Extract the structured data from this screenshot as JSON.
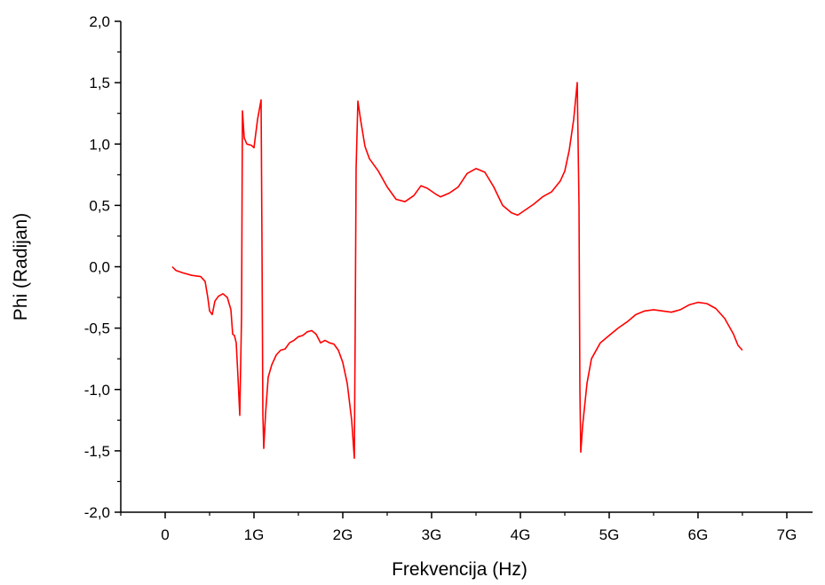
{
  "chart_data": {
    "type": "line",
    "title": "",
    "xlabel": "Frekvencija (Hz)",
    "ylabel": "Phi (Radijan)",
    "xlim": [
      -0.5,
      7.4
    ],
    "ylim": [
      -2.0,
      2.0
    ],
    "grid": false,
    "legend": "none",
    "x_ticks": [
      0,
      1,
      2,
      3,
      4,
      5,
      6,
      7
    ],
    "x_tick_labels": [
      "0",
      "1G",
      "2G",
      "3G",
      "4G",
      "5G",
      "6G",
      "7G"
    ],
    "y_ticks": [
      -2.0,
      -1.5,
      -1.0,
      -0.5,
      0.0,
      0.5,
      1.0,
      1.5,
      2.0
    ],
    "y_tick_labels": [
      "-2,0",
      "-1,5",
      "-1,0",
      "-0,5",
      "0,0",
      "0,5",
      "1,0",
      "1,5",
      "2,0"
    ],
    "series": [
      {
        "color": "#ff0000",
        "points": [
          [
            0.08,
            0.0
          ],
          [
            0.12,
            -0.03
          ],
          [
            0.2,
            -0.05
          ],
          [
            0.3,
            -0.07
          ],
          [
            0.4,
            -0.08
          ],
          [
            0.45,
            -0.12
          ],
          [
            0.48,
            -0.25
          ],
          [
            0.5,
            -0.36
          ],
          [
            0.53,
            -0.39
          ],
          [
            0.56,
            -0.28
          ],
          [
            0.6,
            -0.24
          ],
          [
            0.65,
            -0.22
          ],
          [
            0.7,
            -0.25
          ],
          [
            0.74,
            -0.35
          ],
          [
            0.76,
            -0.55
          ],
          [
            0.78,
            -0.56
          ],
          [
            0.8,
            -0.62
          ],
          [
            0.82,
            -0.9
          ],
          [
            0.84,
            -1.21
          ],
          [
            0.86,
            -0.4
          ],
          [
            0.87,
            1.27
          ],
          [
            0.89,
            1.05
          ],
          [
            0.92,
            1.0
          ],
          [
            0.97,
            0.99
          ],
          [
            1.0,
            0.97
          ],
          [
            1.04,
            1.2
          ],
          [
            1.08,
            1.36
          ],
          [
            1.09,
            0.2
          ],
          [
            1.1,
            -1.2
          ],
          [
            1.11,
            -1.48
          ],
          [
            1.13,
            -1.2
          ],
          [
            1.16,
            -0.9
          ],
          [
            1.2,
            -0.8
          ],
          [
            1.25,
            -0.72
          ],
          [
            1.3,
            -0.68
          ],
          [
            1.35,
            -0.67
          ],
          [
            1.4,
            -0.62
          ],
          [
            1.45,
            -0.6
          ],
          [
            1.5,
            -0.57
          ],
          [
            1.55,
            -0.56
          ],
          [
            1.6,
            -0.53
          ],
          [
            1.65,
            -0.52
          ],
          [
            1.7,
            -0.55
          ],
          [
            1.75,
            -0.62
          ],
          [
            1.8,
            -0.6
          ],
          [
            1.85,
            -0.62
          ],
          [
            1.9,
            -0.63
          ],
          [
            1.95,
            -0.68
          ],
          [
            2.0,
            -0.78
          ],
          [
            2.05,
            -0.95
          ],
          [
            2.1,
            -1.25
          ],
          [
            2.13,
            -1.56
          ],
          [
            2.14,
            -0.5
          ],
          [
            2.15,
            0.8
          ],
          [
            2.17,
            1.35
          ],
          [
            2.2,
            1.2
          ],
          [
            2.25,
            0.98
          ],
          [
            2.3,
            0.88
          ],
          [
            2.4,
            0.78
          ],
          [
            2.5,
            0.65
          ],
          [
            2.6,
            0.55
          ],
          [
            2.7,
            0.53
          ],
          [
            2.8,
            0.58
          ],
          [
            2.88,
            0.66
          ],
          [
            2.95,
            0.64
          ],
          [
            3.05,
            0.59
          ],
          [
            3.1,
            0.57
          ],
          [
            3.2,
            0.6
          ],
          [
            3.3,
            0.65
          ],
          [
            3.4,
            0.76
          ],
          [
            3.5,
            0.8
          ],
          [
            3.6,
            0.77
          ],
          [
            3.7,
            0.65
          ],
          [
            3.8,
            0.5
          ],
          [
            3.9,
            0.44
          ],
          [
            3.97,
            0.42
          ],
          [
            4.05,
            0.46
          ],
          [
            4.15,
            0.51
          ],
          [
            4.25,
            0.57
          ],
          [
            4.35,
            0.61
          ],
          [
            4.45,
            0.7
          ],
          [
            4.5,
            0.78
          ],
          [
            4.55,
            0.95
          ],
          [
            4.6,
            1.2
          ],
          [
            4.64,
            1.5
          ],
          [
            4.66,
            0.5
          ],
          [
            4.67,
            -1.0
          ],
          [
            4.68,
            -1.51
          ],
          [
            4.7,
            -1.3
          ],
          [
            4.75,
            -0.95
          ],
          [
            4.8,
            -0.75
          ],
          [
            4.9,
            -0.62
          ],
          [
            5.0,
            -0.56
          ],
          [
            5.1,
            -0.5
          ],
          [
            5.2,
            -0.45
          ],
          [
            5.3,
            -0.39
          ],
          [
            5.4,
            -0.36
          ],
          [
            5.5,
            -0.35
          ],
          [
            5.6,
            -0.36
          ],
          [
            5.7,
            -0.37
          ],
          [
            5.8,
            -0.35
          ],
          [
            5.9,
            -0.31
          ],
          [
            6.0,
            -0.29
          ],
          [
            6.1,
            -0.3
          ],
          [
            6.2,
            -0.34
          ],
          [
            6.3,
            -0.42
          ],
          [
            6.4,
            -0.55
          ],
          [
            6.45,
            -0.64
          ],
          [
            6.5,
            -0.68
          ]
        ]
      }
    ]
  }
}
